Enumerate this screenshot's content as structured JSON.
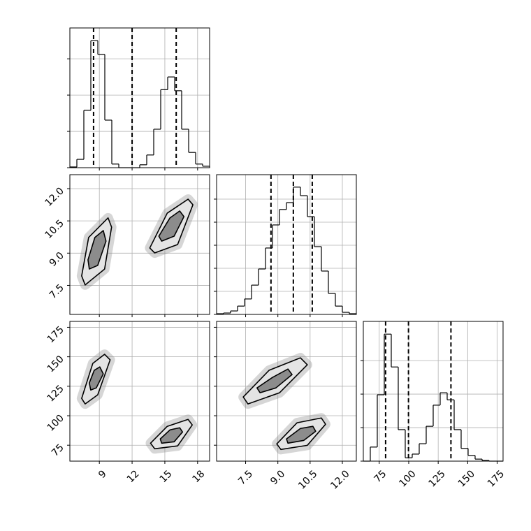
{
  "chart_data": {
    "type": "corner",
    "grid": true,
    "params": [
      {
        "lim": [
          6.3,
          19.1
        ],
        "ticks": [
          9,
          12,
          15,
          18
        ],
        "bins": [
          6.3,
          6.94,
          7.58,
          8.22,
          8.86,
          9.5,
          10.14,
          10.78,
          11.42,
          12.06,
          12.7,
          13.34,
          13.98,
          14.62,
          15.26,
          15.9,
          16.54,
          17.18,
          17.82,
          18.46,
          19.1
        ],
        "counts": [
          0.02,
          0.23,
          1.58,
          3.5,
          3.12,
          1.31,
          0.1,
          0,
          0,
          0,
          0.08,
          0.35,
          1.06,
          2.15,
          2.5,
          2.12,
          1.06,
          0.42,
          0.1,
          0.04
        ],
        "count_lim": [
          0,
          3.85
        ],
        "count_ticks": [
          0,
          1,
          2,
          3
        ],
        "quantiles": [
          8.47,
          12.0,
          16.04
        ]
      },
      {
        "lim": [
          6.15,
          12.65
        ],
        "ticks": [
          7.5,
          {
            "value": 9,
            "label": "9.0"
          },
          10.5,
          {
            "value": 12,
            "label": "12.0"
          }
        ],
        "bins": [
          6.15,
          6.475,
          6.8,
          7.125,
          7.45,
          7.775,
          8.1,
          8.425,
          8.75,
          9.075,
          9.4,
          9.725,
          10.05,
          10.375,
          10.7,
          11.025,
          11.35,
          11.675,
          12.0,
          12.325,
          12.65
        ],
        "counts": [
          0.03,
          0.06,
          0.15,
          0.36,
          0.67,
          1.27,
          1.97,
          2.88,
          3.88,
          4.55,
          4.85,
          5.52,
          5.15,
          4.24,
          2.94,
          1.88,
          0.91,
          0.36,
          0.09,
          0.03
        ],
        "count_lim": [
          0,
          6.06
        ],
        "count_ticks": [
          0,
          1,
          2,
          3,
          4,
          5
        ],
        "quantiles": [
          8.68,
          9.72,
          10.6
        ]
      },
      {
        "lim": [
          61.5,
          180
        ],
        "ticks": [
          75,
          100,
          125,
          150,
          175
        ],
        "bins": [
          61.5,
          67.425,
          73.35,
          79.275,
          85.2,
          91.125,
          97.05,
          102.975,
          108.9,
          114.825,
          120.75,
          126.675,
          132.6,
          138.525,
          144.45,
          150.375,
          156.3,
          162.225,
          168.15,
          174.075,
          180
        ],
        "counts": [
          0,
          0.42,
          1.98,
          3.79,
          2.81,
          0.94,
          0.1,
          0.21,
          0.52,
          1.04,
          1.67,
          2.04,
          1.83,
          0.94,
          0.38,
          0.17,
          0.06,
          0.02,
          0,
          0
        ],
        "count_lim": [
          0,
          4.17
        ],
        "count_ticks": [
          0,
          1,
          2,
          3
        ],
        "quantiles": [
          80.4,
          99.8,
          135.8
        ]
      }
    ],
    "pairs": [
      {
        "contours": [
          {
            "x": [
              9.8,
              10.12,
              9.48,
              7.7,
              7.38,
              8.02
            ],
            "y": [
              10.64,
              10.21,
              8.26,
              7.52,
              7.94,
              9.73
            ]
          },
          {
            "x": [
              9.36,
              9.61,
              8.85,
              8.08,
              7.96,
              8.59
            ],
            "y": [
              10.05,
              9.56,
              8.43,
              8.26,
              8.69,
              9.73
            ]
          },
          {
            "x": [
              17.13,
              17.57,
              16.17,
              14.07,
              13.62,
              15.22
            ],
            "y": [
              11.51,
              11.25,
              9.4,
              9.01,
              9.24,
              10.86
            ]
          },
          {
            "x": [
              16.36,
              16.75,
              15.85,
              14.71,
              14.45,
              15.47
            ],
            "y": [
              10.96,
              10.7,
              9.79,
              9.56,
              9.79,
              10.64
            ]
          }
        ]
      },
      {
        "contours": [
          {
            "x": [
              9.48,
              9.99,
              8.85,
              7.7,
              7.38,
              8.4
            ],
            "y": [
              152.1,
              147.4,
              117.7,
              110.0,
              114.7,
              144.4
            ]
          },
          {
            "x": [
              9.04,
              9.36,
              8.72,
              8.21,
              8.08,
              8.53
            ],
            "y": [
              141.4,
              135.5,
              123.6,
              121.8,
              127.8,
              138.5
            ]
          },
          {
            "x": [
              17.13,
              17.51,
              16.17,
              14.07,
              13.69,
              15.22
            ],
            "y": [
              96.9,
              92.2,
              74.4,
              72.0,
              76.7,
              91.0
            ]
          },
          {
            "x": [
              16.36,
              16.62,
              15.85,
              14.71,
              14.58,
              15.47
            ],
            "y": [
              89.8,
              86.2,
              77.9,
              76.7,
              80.3,
              88.0
            ]
          }
        ]
      },
      {
        "contours": [
          {
            "x": [
              10.05,
              10.37,
              9.08,
              7.61,
              7.39,
              8.59
            ],
            "y": [
              149.1,
              143.2,
              119.5,
              110.0,
              115.9,
              138.5
            ]
          },
          {
            "x": [
              9.47,
              9.66,
              8.91,
              8.17,
              8.03,
              8.75
            ],
            "y": [
              139.6,
              134.9,
              123.6,
              119.5,
              123.6,
              132.5
            ]
          },
          {
            "x": [
              11.02,
              11.22,
              10.37,
              9.14,
              8.95,
              9.89
            ],
            "y": [
              98.1,
              92.8,
              74.9,
              71.4,
              76.1,
              94.0
            ]
          },
          {
            "x": [
              10.63,
              10.76,
              10.21,
              9.47,
              9.4,
              10.05
            ],
            "y": [
              91.0,
              86.8,
              79.1,
              76.7,
              80.3,
              89.2
            ]
          }
        ]
      }
    ]
  }
}
